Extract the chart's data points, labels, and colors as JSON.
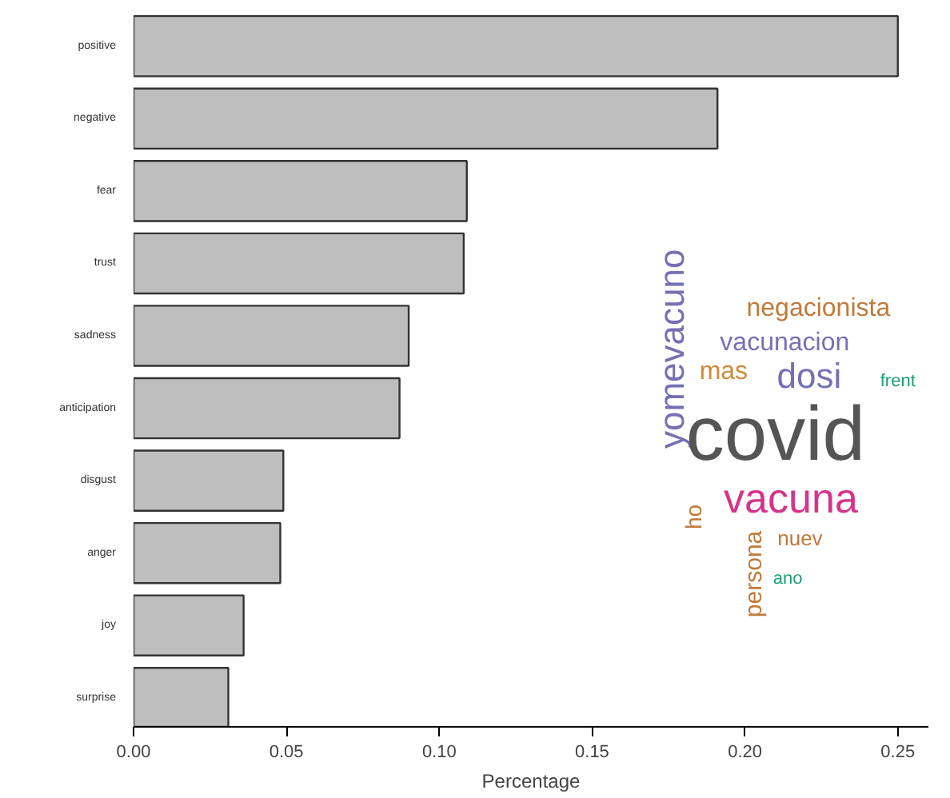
{
  "chart_data": {
    "type": "bar",
    "orientation": "horizontal",
    "categories": [
      "positive",
      "negative",
      "fear",
      "trust",
      "sadness",
      "anticipation",
      "disgust",
      "anger",
      "joy",
      "surprise"
    ],
    "values": [
      0.25,
      0.191,
      0.109,
      0.108,
      0.09,
      0.087,
      0.049,
      0.048,
      0.036,
      0.031
    ],
    "color": "#bebebe",
    "xlabel": "Percentage",
    "xlim": [
      0,
      0.26
    ],
    "xticks": [
      {
        "value": 0,
        "label": "0.00"
      },
      {
        "value": 0.05,
        "label": "0.05"
      },
      {
        "value": 0.1,
        "label": "0.10"
      },
      {
        "value": 0.15,
        "label": "0.15"
      },
      {
        "value": 0.2,
        "label": "0.20"
      },
      {
        "value": 0.25,
        "label": "0.25"
      }
    ],
    "grid": false,
    "annotations": [
      "yomevacuno",
      "negacionista",
      "vacunacion",
      "mas",
      "dosi",
      "covid",
      "vacuna",
      "frent",
      "ho",
      "persona",
      "nuev",
      "ano"
    ]
  }
}
